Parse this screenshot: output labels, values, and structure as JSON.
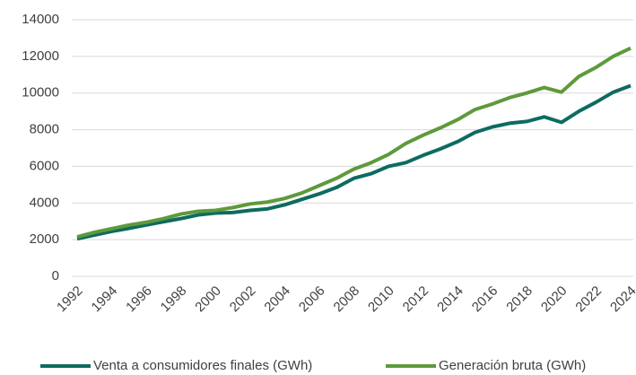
{
  "chart_data": {
    "type": "line",
    "categories": [
      "1992",
      null,
      "1994",
      null,
      "1996",
      null,
      "1998",
      null,
      "2000",
      null,
      "2002",
      null,
      "2004",
      null,
      "2006",
      null,
      "2008",
      null,
      "2010",
      null,
      "2012",
      null,
      "2014",
      null,
      "2016",
      null,
      "2018",
      null,
      "2020",
      null,
      "2022",
      null,
      "2024"
    ],
    "series": [
      {
        "name": "Venta a consumidores finales (GWh)",
        "color": "#0e6b60",
        "values": [
          2050,
          2250,
          2450,
          2620,
          2800,
          2980,
          3150,
          3350,
          3450,
          3480,
          3600,
          3680,
          3900,
          4200,
          4500,
          4850,
          5350,
          5600,
          6000,
          6200,
          6600,
          6950,
          7350,
          7850,
          8150,
          8350,
          8450,
          8700,
          8400,
          9000,
          9500,
          10050,
          10400
        ]
      },
      {
        "name": "Generación bruta (GWh)",
        "color": "#5e9a3c",
        "values": [
          2150,
          2400,
          2600,
          2800,
          2950,
          3150,
          3400,
          3550,
          3600,
          3750,
          3950,
          4050,
          4250,
          4550,
          4950,
          5350,
          5850,
          6200,
          6650,
          7250,
          7700,
          8100,
          8550,
          9100,
          9400,
          9750,
          10000,
          10300,
          10050,
          10900,
          11400,
          12000,
          12450
        ]
      }
    ],
    "ylim": [
      0,
      14000
    ],
    "yticks": [
      0,
      2000,
      4000,
      6000,
      8000,
      10000,
      12000,
      14000
    ],
    "grid": true,
    "legend": "bottom"
  }
}
